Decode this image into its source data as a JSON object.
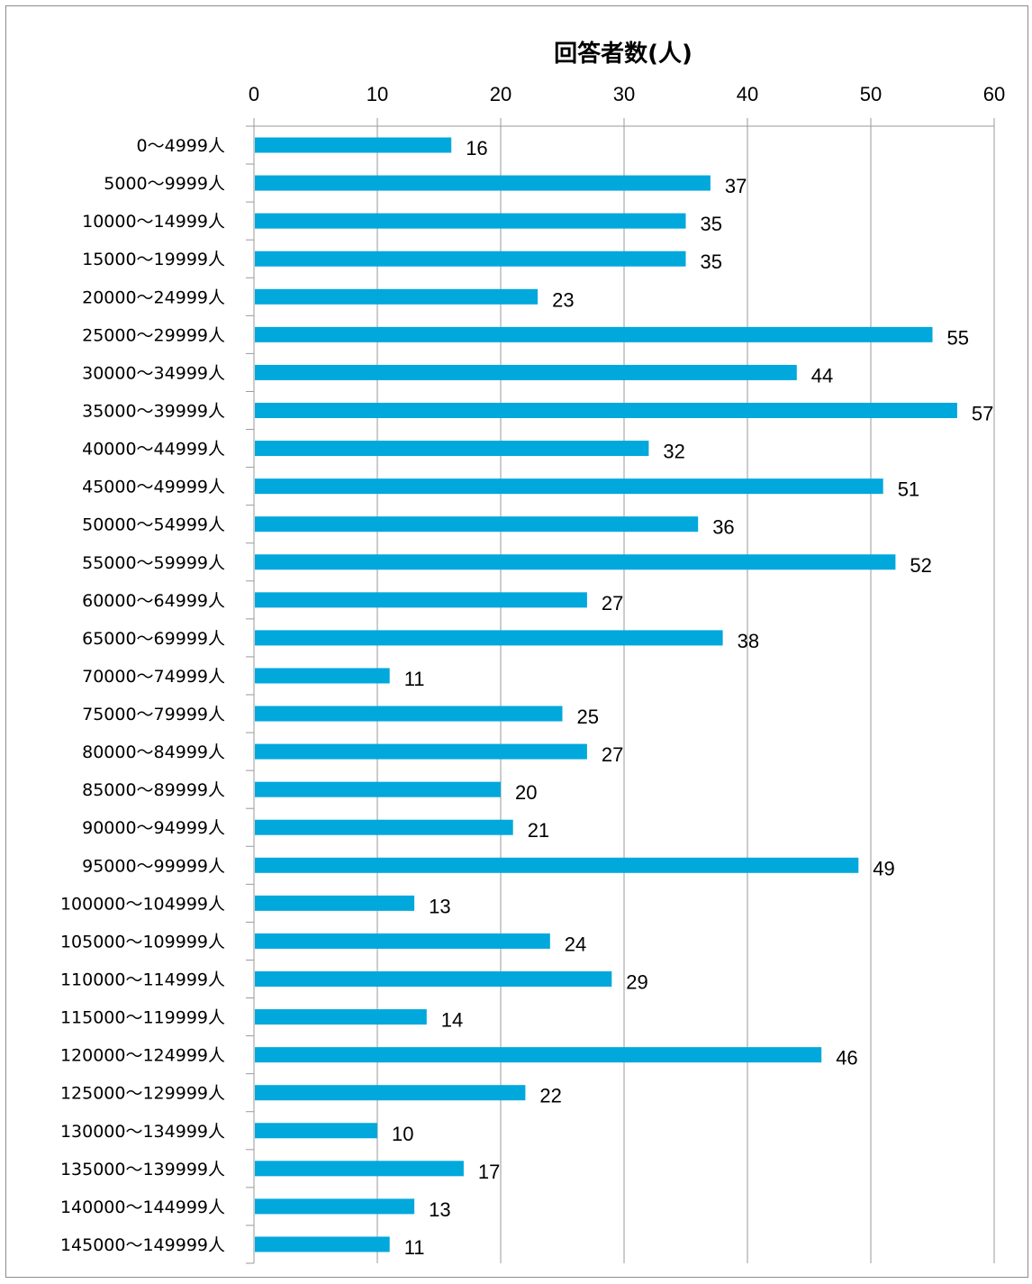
{
  "chart_data": {
    "type": "bar",
    "orientation": "horizontal",
    "title": "回答者数(人)",
    "xaxis_position": "top",
    "xlim": [
      0,
      60
    ],
    "xticks": [
      0,
      10,
      20,
      30,
      40,
      50,
      60
    ],
    "grid": true,
    "bar_color": "#00A8DC",
    "categories": [
      "0～4999人",
      "5000～9999人",
      "10000～14999人",
      "15000～19999人",
      "20000～24999人",
      "25000～29999人",
      "30000～34999人",
      "35000～39999人",
      "40000～44999人",
      "45000～49999人",
      "50000～54999人",
      "55000～59999人",
      "60000～64999人",
      "65000～69999人",
      "70000～74999人",
      "75000～79999人",
      "80000～84999人",
      "85000～89999人",
      "90000～94999人",
      "95000～99999人",
      "100000～104999人",
      "105000～109999人",
      "110000～114999人",
      "115000～119999人",
      "120000～124999人",
      "125000～129999人",
      "130000～134999人",
      "135000～139999人",
      "140000～144999人",
      "145000～149999人"
    ],
    "values": [
      16,
      37,
      35,
      35,
      23,
      55,
      44,
      57,
      32,
      51,
      36,
      52,
      27,
      38,
      11,
      25,
      27,
      20,
      21,
      49,
      13,
      24,
      29,
      14,
      46,
      22,
      10,
      17,
      13,
      11
    ]
  }
}
